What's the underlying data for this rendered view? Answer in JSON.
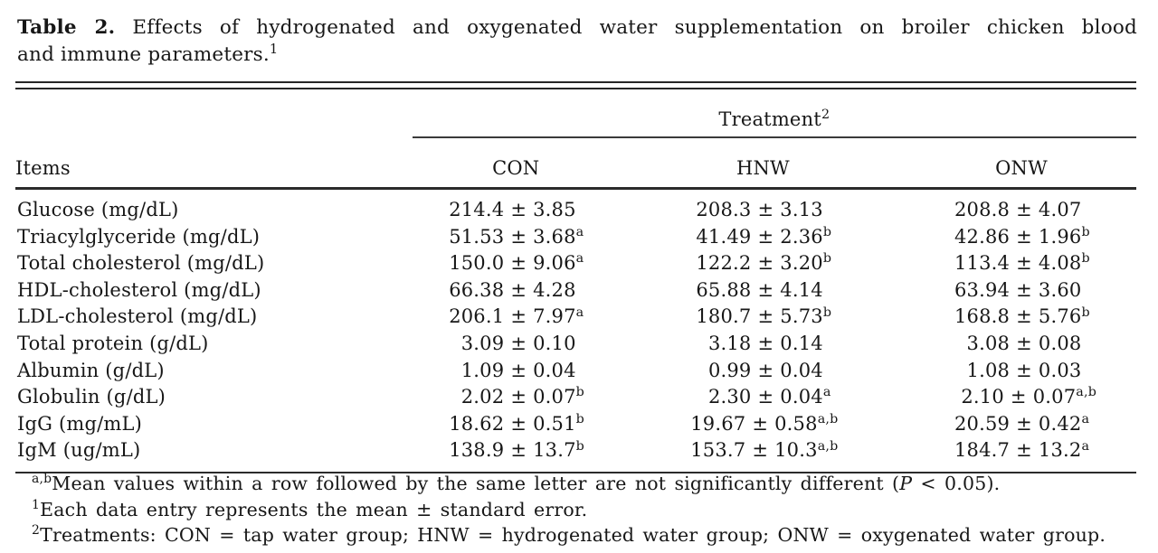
{
  "title": {
    "label": "Table 2.",
    "line1": "Effects of hydrogenated and oxygenated water supplementation on broiler chicken blood",
    "line2": "and immune parameters.",
    "footnote_ref": "1"
  },
  "table": {
    "plus_minus": "±",
    "spanner": {
      "label": "Treatment",
      "sup": "2"
    },
    "columns": {
      "items": "Items",
      "con": "CON",
      "hnw": "HNW",
      "onw": "ONW"
    },
    "rows": [
      {
        "item": "Glucose (mg/dL)",
        "values": [
          {
            "mean": "214.4",
            "err": "3.85",
            "sup": ""
          },
          {
            "mean": "208.3",
            "err": "3.13",
            "sup": ""
          },
          {
            "mean": "208.8",
            "err": "4.07",
            "sup": ""
          }
        ]
      },
      {
        "item": "Triacylglyceride (mg/dL)",
        "values": [
          {
            "mean": "51.53",
            "err": "3.68",
            "sup": "a"
          },
          {
            "mean": "41.49",
            "err": "2.36",
            "sup": "b"
          },
          {
            "mean": "42.86",
            "err": "1.96",
            "sup": "b"
          }
        ]
      },
      {
        "item": "Total cholesterol (mg/dL)",
        "values": [
          {
            "mean": "150.0",
            "err": "9.06",
            "sup": "a"
          },
          {
            "mean": "122.2",
            "err": "3.20",
            "sup": "b"
          },
          {
            "mean": "113.4",
            "err": "4.08",
            "sup": "b"
          }
        ]
      },
      {
        "item": "HDL-cholesterol (mg/dL)",
        "values": [
          {
            "mean": "66.38",
            "err": "4.28",
            "sup": ""
          },
          {
            "mean": "65.88",
            "err": "4.14",
            "sup": ""
          },
          {
            "mean": "63.94",
            "err": "3.60",
            "sup": ""
          }
        ]
      },
      {
        "item": "LDL-cholesterol (mg/dL)",
        "values": [
          {
            "mean": "206.1",
            "err": "7.97",
            "sup": "a"
          },
          {
            "mean": "180.7",
            "err": "5.73",
            "sup": "b"
          },
          {
            "mean": "168.8",
            "err": "5.76",
            "sup": "b"
          }
        ]
      },
      {
        "item": "Total protein (g/dL)",
        "values": [
          {
            "mean": "3.09",
            "err": "0.10",
            "sup": ""
          },
          {
            "mean": "3.18",
            "err": "0.14",
            "sup": ""
          },
          {
            "mean": "3.08",
            "err": "0.08",
            "sup": ""
          }
        ]
      },
      {
        "item": "Albumin (g/dL)",
        "values": [
          {
            "mean": "1.09",
            "err": "0.04",
            "sup": ""
          },
          {
            "mean": "0.99",
            "err": "0.04",
            "sup": ""
          },
          {
            "mean": "1.08",
            "err": "0.03",
            "sup": ""
          }
        ]
      },
      {
        "item": "Globulin (g/dL)",
        "values": [
          {
            "mean": "2.02",
            "err": "0.07",
            "sup": "b"
          },
          {
            "mean": "2.30",
            "err": "0.04",
            "sup": "a"
          },
          {
            "mean": "2.10",
            "err": "0.07",
            "sup": "a,b"
          }
        ]
      },
      {
        "item": "IgG (mg/mL)",
        "values": [
          {
            "mean": "18.62",
            "err": "0.51",
            "sup": "b"
          },
          {
            "mean": "19.67",
            "err": "0.58",
            "sup": "a,b"
          },
          {
            "mean": "20.59",
            "err": "0.42",
            "sup": "a"
          }
        ]
      },
      {
        "item": "IgM (ug/mL)",
        "values": [
          {
            "mean": "138.9",
            "err": "13.7",
            "sup": "b"
          },
          {
            "mean": "153.7",
            "err": "10.3",
            "sup": "a,b"
          },
          {
            "mean": "184.7",
            "err": "13.2",
            "sup": "a"
          }
        ]
      }
    ]
  },
  "footnotes": [
    {
      "sup": "a,b",
      "pre": "Mean values within a row followed by the same letter are not significantly different (",
      "italic": "P",
      "post": " < 0.05)."
    },
    {
      "sup": "1",
      "pre": "Each data entry represents the mean ± standard error.",
      "italic": "",
      "post": ""
    },
    {
      "sup": "2",
      "pre": "Treatments: CON = tap water group; HNW = hydrogenated water group; ONW = oxygenated water group.",
      "italic": "",
      "post": ""
    }
  ]
}
